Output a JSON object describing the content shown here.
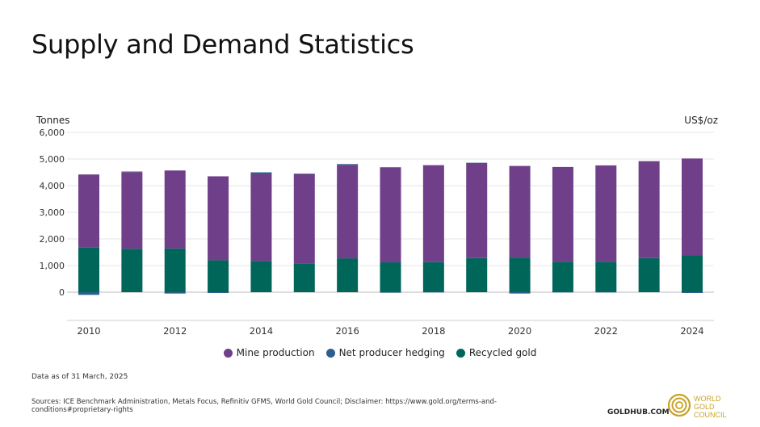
{
  "page": {
    "title": "Supply and Demand Statistics",
    "left_unit": "Tonnes",
    "right_unit": "US$/oz",
    "note": "Data as of 31 March, 2025",
    "sources": "Sources: ICE Benchmark Administration, Metals Focus, Refinitiv GFMS, World Gold Council; Disclaimer: https://www.gold.org/terms-and-conditions#proprietary-rights",
    "goldhub": "GOLDHUB.COM",
    "wgc_line1": "WORLD",
    "wgc_line2": "GOLD",
    "wgc_line3": "COUNCIL"
  },
  "colors": {
    "mine": "#6f3f8a",
    "hedging": "#2c5f8e",
    "recycled": "#00665a",
    "gold": "#c9a227"
  },
  "chart_data": {
    "type": "bar",
    "stacked": true,
    "categories": [
      "2010",
      "2011",
      "2012",
      "2013",
      "2014",
      "2015",
      "2016",
      "2017",
      "2018",
      "2019",
      "2020",
      "2021",
      "2022",
      "2023",
      "2024"
    ],
    "x_tick_labels": [
      "2010",
      "2012",
      "2014",
      "2016",
      "2018",
      "2020",
      "2022",
      "2024"
    ],
    "ylabel": "Tonnes",
    "ylim": [
      0,
      6000
    ],
    "yticks": [
      0,
      1000,
      2000,
      3000,
      4000,
      5000,
      6000
    ],
    "ytick_labels": [
      "0",
      "1,000",
      "2,000",
      "3,000",
      "4,000",
      "5,000",
      "6,000"
    ],
    "grid": true,
    "legend_position": "bottom",
    "series": [
      {
        "name": "Mine production",
        "values": [
          2750,
          2880,
          2930,
          3150,
          3270,
          3360,
          3510,
          3570,
          3640,
          3570,
          3440,
          3560,
          3620,
          3640,
          3640
        ]
      },
      {
        "name": "Net producer hedging",
        "values": [
          -100,
          20,
          -50,
          -30,
          60,
          10,
          30,
          -20,
          -10,
          10,
          -50,
          -10,
          -10,
          0,
          -30
        ]
      },
      {
        "name": "Recycled gold",
        "values": [
          1670,
          1630,
          1640,
          1200,
          1170,
          1080,
          1270,
          1120,
          1130,
          1280,
          1300,
          1140,
          1140,
          1280,
          1380
        ]
      }
    ]
  }
}
